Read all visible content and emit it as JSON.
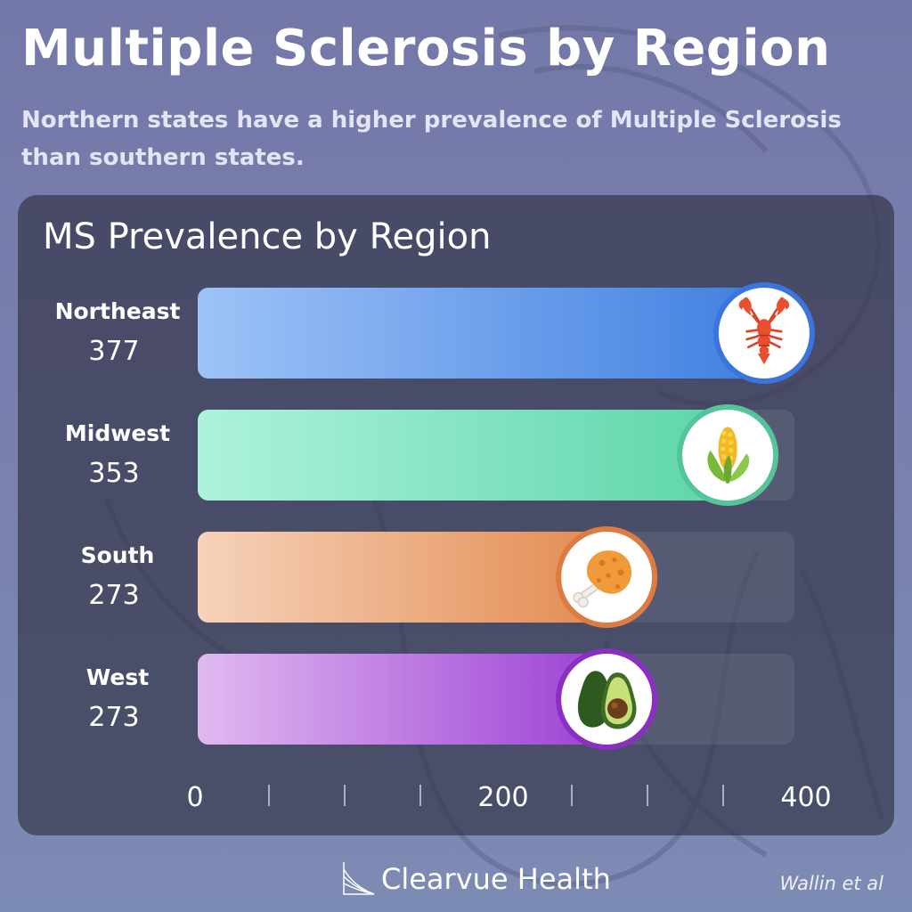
{
  "header": {
    "title": "Multiple Sclerosis by Region",
    "subtitle": "Northern states have a higher prevalence of Multiple Sclerosis than southern states."
  },
  "chart_data": {
    "type": "bar",
    "orientation": "horizontal",
    "title": "MS Prevalence by Region",
    "xlabel": "",
    "ylabel": "",
    "xlim": [
      0,
      400
    ],
    "x_ticks": [
      0,
      200,
      400
    ],
    "minor_ticks": [
      50,
      100,
      150,
      250,
      300,
      350
    ],
    "categories": [
      "Northeast",
      "Midwest",
      "South",
      "West"
    ],
    "values": [
      377,
      353,
      273,
      273
    ],
    "value_labels": [
      "377",
      "353",
      "273",
      "273"
    ],
    "icons": [
      "lobster-icon",
      "corn-icon",
      "fried-chicken-icon",
      "avocado-icon"
    ],
    "colors": [
      {
        "from": "#9ec3f7",
        "to": "#3f7fe0",
        "ring": "#3b74dc"
      },
      {
        "from": "#aef2dc",
        "to": "#5cd5a8",
        "ring": "#56c49a"
      },
      {
        "from": "#f6d2bb",
        "to": "#e38a4e",
        "ring": "#dd7c42"
      },
      {
        "from": "#e1b9f1",
        "to": "#9a3fd3",
        "ring": "#8a2fc2"
      }
    ],
    "grid": false,
    "legend": "none"
  },
  "footer": {
    "brand": "Clearvue Health",
    "source": "Wallin et al"
  }
}
